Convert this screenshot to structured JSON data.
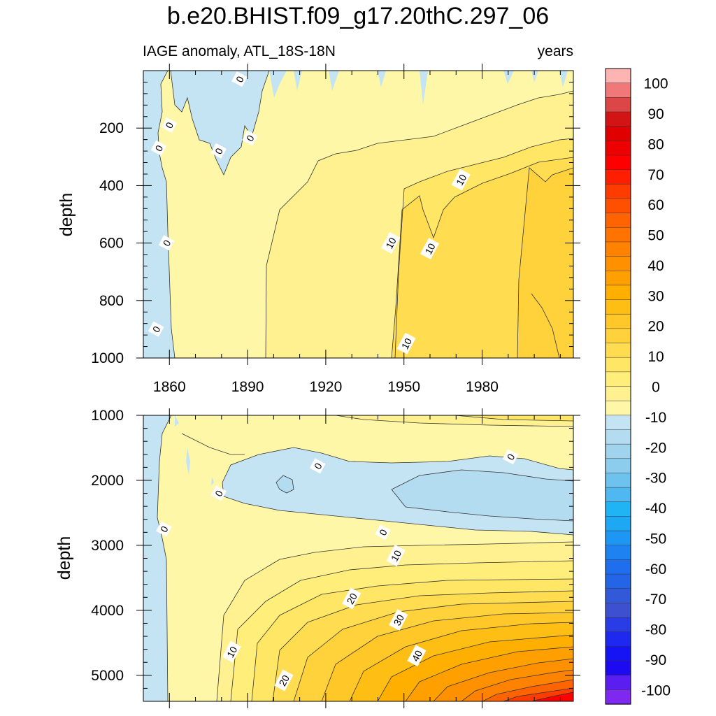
{
  "title": "b.e20.BHIST.f09_g17.20thC.297_06",
  "subtitle_left": "IAGE anomaly, ATL_18S-18N",
  "subtitle_right": "years",
  "chart_data": [
    {
      "type": "heatmap",
      "panel": "upper",
      "ylabel": "depth",
      "xlim": [
        1850,
        2015
      ],
      "ylim": [
        0,
        1000
      ],
      "y_reversed": true,
      "x_ticks": [
        "1860",
        "1890",
        "1920",
        "1950",
        "1980"
      ],
      "y_ticks": [
        "200",
        "400",
        "600",
        "800",
        "1000"
      ],
      "contour_labels": [
        {
          "text": "0",
          "x": 1855,
          "y": 900
        },
        {
          "text": "0",
          "x": 1859,
          "y": 600
        },
        {
          "text": "0",
          "x": 1856,
          "y": 270
        },
        {
          "text": "0",
          "x": 1860,
          "y": 190
        },
        {
          "text": "0",
          "x": 1879,
          "y": 280
        },
        {
          "text": "0",
          "x": 1891,
          "y": 235
        },
        {
          "text": "0",
          "x": 1887,
          "y": 30
        },
        {
          "text": "10",
          "x": 1945,
          "y": 600
        },
        {
          "text": "10",
          "x": 1960,
          "y": 620
        },
        {
          "text": "10",
          "x": 1972,
          "y": 380
        },
        {
          "text": "10",
          "x": 1951,
          "y": 950
        }
      ]
    },
    {
      "type": "heatmap",
      "panel": "lower",
      "ylabel": "depth",
      "xlim": [
        1850,
        2015
      ],
      "ylim": [
        1000,
        5400
      ],
      "y_reversed": true,
      "y_ticks": [
        "1000",
        "2000",
        "3000",
        "4000",
        "5000"
      ],
      "contour_labels": [
        {
          "text": "0",
          "x": 1858,
          "y": 2750
        },
        {
          "text": "0",
          "x": 1879,
          "y": 2200
        },
        {
          "text": "0",
          "x": 1917,
          "y": 1780
        },
        {
          "text": "0",
          "x": 1991,
          "y": 1640
        },
        {
          "text": "0",
          "x": 1942,
          "y": 2800
        },
        {
          "text": "10",
          "x": 1947,
          "y": 3160
        },
        {
          "text": "10",
          "x": 1884,
          "y": 4640
        },
        {
          "text": "20",
          "x": 1930,
          "y": 3820
        },
        {
          "text": "20",
          "x": 1904,
          "y": 5080
        },
        {
          "text": "30",
          "x": 1948,
          "y": 4150
        },
        {
          "text": "40",
          "x": 1955,
          "y": 4700
        }
      ]
    }
  ],
  "colorbar": {
    "labels": [
      "100",
      "90",
      "80",
      "70",
      "60",
      "50",
      "40",
      "30",
      "20",
      "10",
      "0",
      "-10",
      "-20",
      "-30",
      "-40",
      "-50",
      "-60",
      "-70",
      "-80",
      "-90",
      "-100"
    ],
    "colors_top_to_bottom": [
      "#ffb4b4",
      "#f07878",
      "#dc4646",
      "#d21414",
      "#e00000",
      "#ee0000",
      "#ff0000",
      "#ff1e00",
      "#ff3c00",
      "#ff5000",
      "#ff6400",
      "#ff7300",
      "#ff8200",
      "#ff9100",
      "#ffa000",
      "#ffaf00",
      "#ffbe14",
      "#ffc828",
      "#ffd23c",
      "#ffdc50",
      "#ffe664",
      "#ffee7a",
      "#fff090",
      "#fff7a8",
      "#c4e4f4",
      "#b4dcf0",
      "#a0d4ee",
      "#8cccec",
      "#6ec2ee",
      "#50b8f0",
      "#20b4f4",
      "#1ea8f4",
      "#1e96f4",
      "#1e82f0",
      "#1e6eee",
      "#2464e6",
      "#325ad8",
      "#3c50d0",
      "#2a3ce6",
      "#1e28ee",
      "#1414f4",
      "#1e0af0",
      "#5a1ef0",
      "#7e28f0"
    ]
  }
}
